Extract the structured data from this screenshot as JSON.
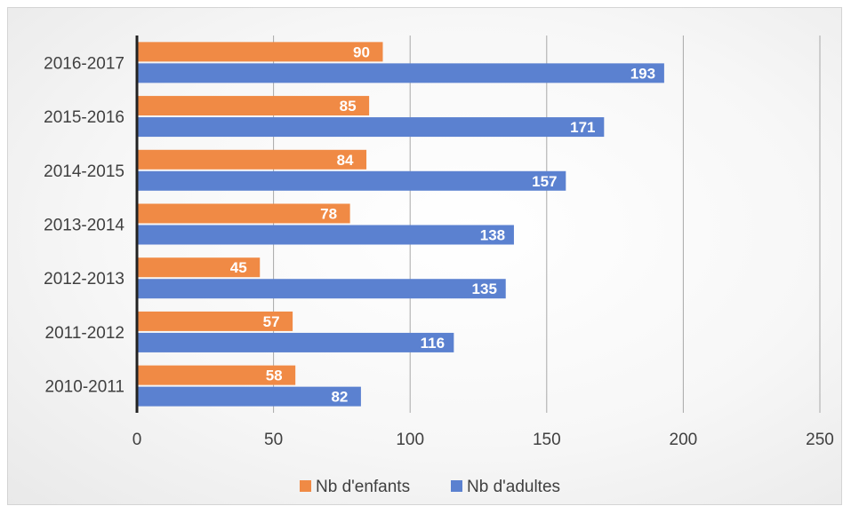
{
  "chart_data": {
    "type": "bar",
    "orientation": "horizontal",
    "categories": [
      "2010-2011",
      "2011-2012",
      "2012-2013",
      "2013-2014",
      "2014-2015",
      "2015-2016",
      "2016-2017"
    ],
    "series": [
      {
        "name": "Nb d'enfants",
        "color": "#f08a45",
        "values": [
          58,
          57,
          45,
          78,
          84,
          85,
          90
        ]
      },
      {
        "name": "Nb d'adultes",
        "color": "#5b81d0",
        "values": [
          82,
          116,
          135,
          138,
          157,
          171,
          193
        ]
      }
    ],
    "xlim": [
      0,
      250
    ],
    "xticks": [
      0,
      50,
      100,
      150,
      200,
      250
    ],
    "grid": "vertical",
    "legend": "bottom",
    "data_labels": true
  }
}
